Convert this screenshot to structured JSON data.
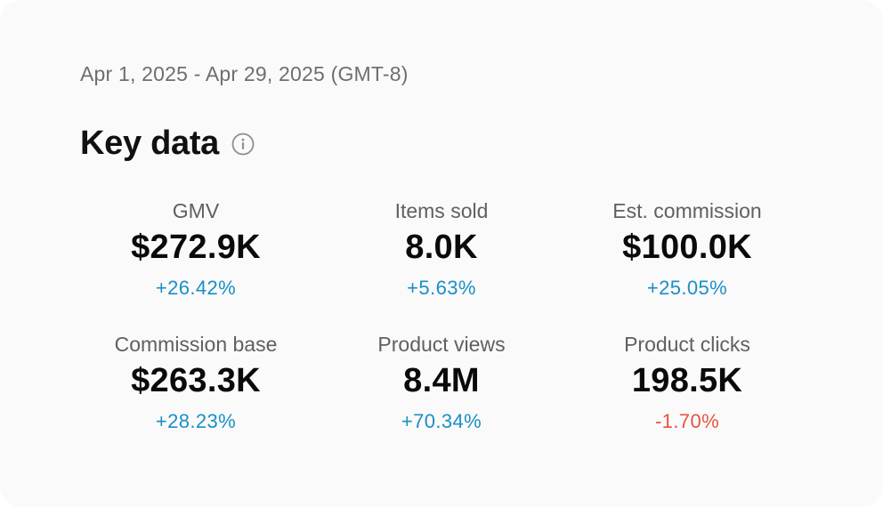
{
  "date_range": "Apr 1, 2025 - Apr 29, 2025 (GMT-8)",
  "title": "Key data",
  "info_icon": "info-icon",
  "colors": {
    "positive": "#1a8fc6",
    "negative": "#e8533f"
  },
  "metrics": [
    {
      "label": "GMV",
      "value": "$272.9K",
      "change": "+26.42%",
      "trend": "up"
    },
    {
      "label": "Items sold",
      "value": "8.0K",
      "change": "+5.63%",
      "trend": "up"
    },
    {
      "label": "Est. commission",
      "value": "$100.0K",
      "change": "+25.05%",
      "trend": "up"
    },
    {
      "label": "Commission base",
      "value": "$263.3K",
      "change": "+28.23%",
      "trend": "up"
    },
    {
      "label": "Product views",
      "value": "8.4M",
      "change": "+70.34%",
      "trend": "up"
    },
    {
      "label": "Product clicks",
      "value": "198.5K",
      "change": "-1.70%",
      "trend": "down"
    }
  ]
}
